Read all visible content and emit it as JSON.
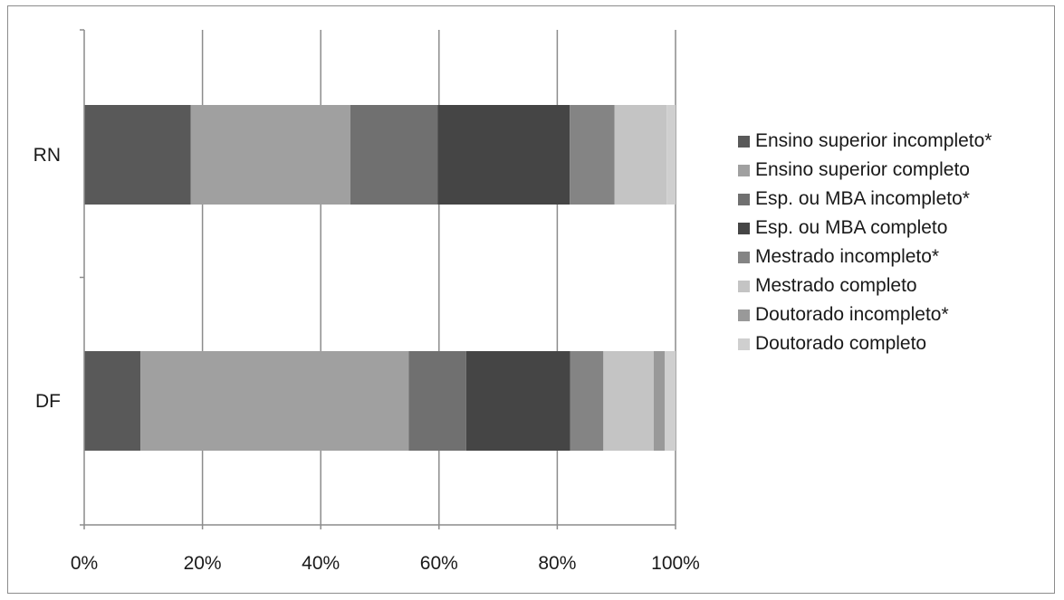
{
  "chart_data": {
    "type": "bar",
    "orientation": "horizontal",
    "stacked": "percent",
    "categories": [
      "RN",
      "DF"
    ],
    "xlim": [
      0,
      100
    ],
    "x_ticks": [
      "0%",
      "20%",
      "40%",
      "60%",
      "80%",
      "100%"
    ],
    "grid": true,
    "legend_position": "right",
    "series": [
      {
        "name": "Ensino superior incompleto*",
        "color": "#595959",
        "values": [
          18.0,
          9.5
        ]
      },
      {
        "name": "Ensino superior completo",
        "color": "#a0a0a0",
        "values": [
          27.0,
          45.4
        ]
      },
      {
        "name": "Esp. ou MBA incompleto*",
        "color": "#707070",
        "values": [
          14.8,
          9.7
        ]
      },
      {
        "name": "Esp. ou MBA completo",
        "color": "#454545",
        "values": [
          22.3,
          17.6
        ]
      },
      {
        "name": "Mestrado incompleto*",
        "color": "#848484",
        "values": [
          7.6,
          5.6
        ]
      },
      {
        "name": "Mestrado completo",
        "color": "#c4c4c4",
        "values": [
          8.8,
          8.5
        ]
      },
      {
        "name": "Doutorado incompleto*",
        "color": "#999999",
        "values": [
          0.0,
          1.9
        ]
      },
      {
        "name": "Doutorado completo",
        "color": "#cfcfcf",
        "values": [
          1.5,
          1.8
        ]
      }
    ]
  }
}
